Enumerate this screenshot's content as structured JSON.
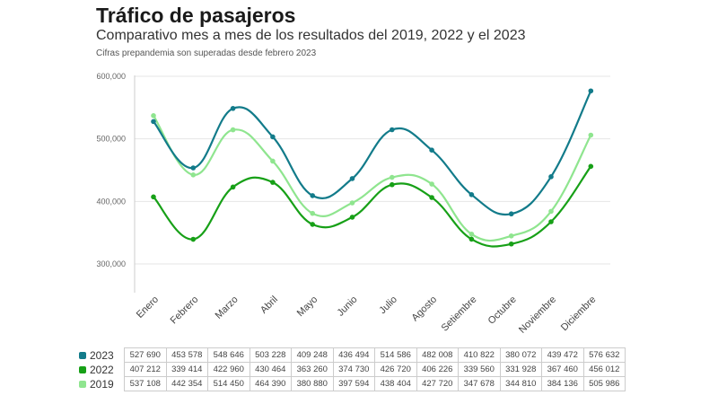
{
  "chart_data": {
    "type": "line",
    "title": "Tráfico de pasajeros",
    "subtitle": "Comparativo mes a mes de los resultados del 2019, 2022 y el 2023",
    "note": "Cifras prepandemia son superadas desde febrero 2023",
    "categories": [
      "Enero",
      "Febrero",
      "Marzo",
      "Abril",
      "Mayo",
      "Junio",
      "Julio",
      "Agosto",
      "Setiembre",
      "Octubre",
      "Noviembre",
      "Diciembre"
    ],
    "y_ticks": [
      "300,000",
      "400,000",
      "500,000",
      "600,000"
    ],
    "ylim": [
      250000,
      610000
    ],
    "grid": true,
    "legend": "table-bottom",
    "series": [
      {
        "name": "2023",
        "color": "#127b8a",
        "values": [
          527690,
          453578,
          548646,
          503228,
          409248,
          436494,
          514586,
          482008,
          410822,
          380072,
          439472,
          576632
        ],
        "labels": [
          "527 690",
          "453 578",
          "548 646",
          "503 228",
          "409 248",
          "436 494",
          "514 586",
          "482 008",
          "410 822",
          "380 072",
          "439 472",
          "576 632"
        ]
      },
      {
        "name": "2022",
        "color": "#17a017",
        "values": [
          407212,
          339414,
          422960,
          430464,
          363260,
          374730,
          426720,
          406226,
          339560,
          331928,
          367460,
          456012
        ],
        "labels": [
          "407 212",
          "339 414",
          "422 960",
          "430 464",
          "363 260",
          "374 730",
          "426 720",
          "406 226",
          "339 560",
          "331 928",
          "367 460",
          "456 012"
        ]
      },
      {
        "name": "2019",
        "color": "#8fe58f",
        "values": [
          537108,
          442354,
          514450,
          464390,
          380880,
          397594,
          438404,
          427720,
          347678,
          344810,
          384136,
          505986
        ],
        "labels": [
          "537 108",
          "442 354",
          "514 450",
          "464 390",
          "380 880",
          "397 594",
          "438 404",
          "427 720",
          "347 678",
          "344 810",
          "384 136",
          "505 986"
        ]
      }
    ]
  }
}
